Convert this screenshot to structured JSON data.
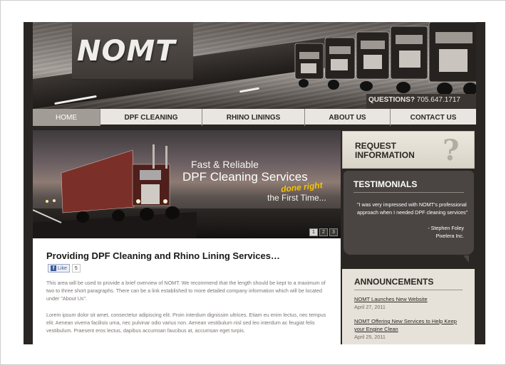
{
  "logo": "NOMT",
  "header": {
    "questions_label": "QUESTIONS?",
    "phone": "705.647.1717"
  },
  "nav": {
    "items": [
      {
        "label": "HOME",
        "active": true
      },
      {
        "label": "DPF CLEANING",
        "active": false
      },
      {
        "label": "RHINO LININGS",
        "active": false
      },
      {
        "label": "ABOUT US",
        "active": false
      },
      {
        "label": "CONTACT US",
        "active": false
      }
    ]
  },
  "slider": {
    "line1": "Fast & Reliable",
    "line2": "DPF Cleaning Services",
    "line3": "done right",
    "line4": "the First Time...",
    "pages": [
      "1",
      "2",
      "3"
    ],
    "current_page": 1
  },
  "main": {
    "title": "Providing DPF Cleaning and Rhino Lining Services…",
    "like_label": "Like",
    "like_count": "5",
    "paragraph1": "This area will be used to provide a brief overview of NOMT. We recommend that the length should be kept to a maximum of two to three short paragraphs. There can be a link established to more detailed company information which will be located under \"About Us\".",
    "paragraph2": "Lorem ipsum dolor sit amet, consectetur adipiscing elit. Proin interdum dignissim ultrices. Etiam eu enim lectus, nec tempus elit. Aenean viverra facilisis urna, nec pulvinar odio varius non. Aenean vestibulum nisl sed leo interdum ac feugiat felis vestibulum. Praesent eros lectus, dapibus accumsan faucibus at, accumsan eget turpis."
  },
  "sidebar": {
    "request_line1": "REQUEST",
    "request_line2": "INFORMATION",
    "request_icon": "question-mark-icon",
    "testimonials_title": "TESTIMONIALS",
    "testimonial_quote": "\"I was very impressed with NOMT's professional approach when I needed DPF cleaning services\"",
    "testimonial_author": "- Stephen Foley",
    "testimonial_company": "Pixelera Inc.",
    "announcements_title": "ANNOUNCEMENTS",
    "announcements": [
      {
        "title": "NOMT Launches New Website",
        "date": "April 27, 2011"
      },
      {
        "title": "NOMT Offering New Services to Help Keep your Engine Clean",
        "date": "April 25, 2011"
      }
    ]
  },
  "colors": {
    "accent_yellow": "#f5c400",
    "nav_active": "#a29c96",
    "dark_panel": "#4a4542",
    "page_bg": "#2a2623"
  }
}
